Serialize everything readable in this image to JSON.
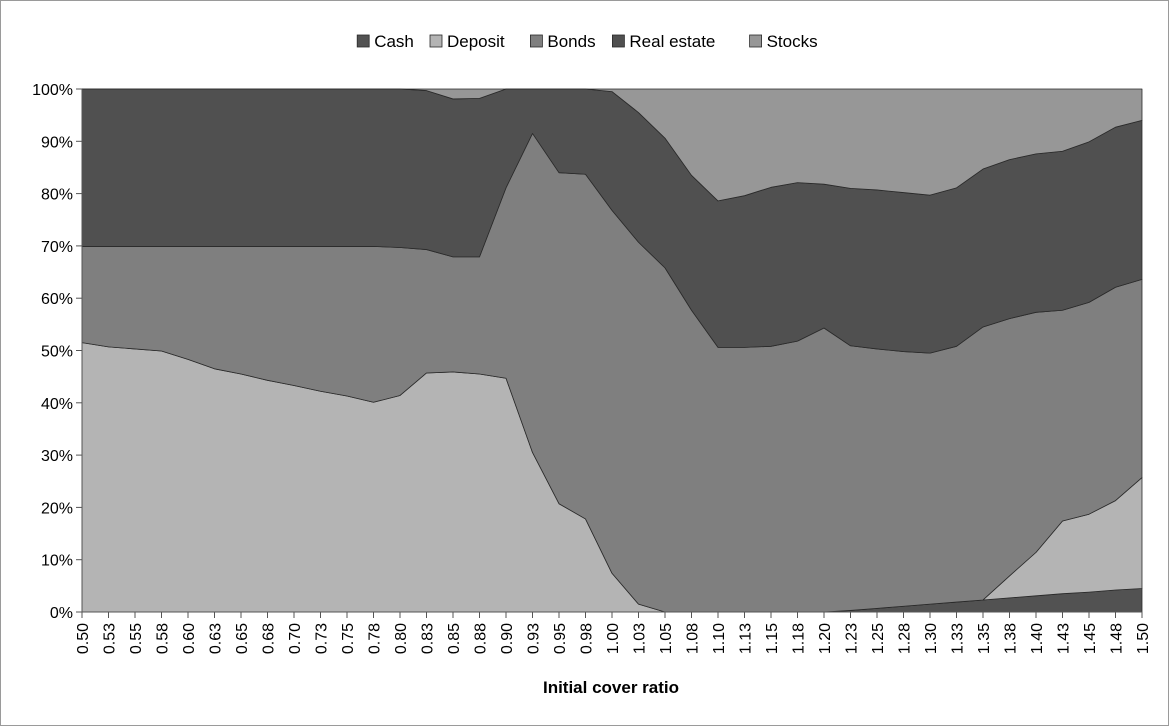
{
  "chart_data": {
    "type": "area",
    "stacked": "percent",
    "xlabel": "Initial cover ratio",
    "ylabel": "",
    "ylim": [
      0,
      100
    ],
    "yticks": [
      "0%",
      "10%",
      "20%",
      "30%",
      "40%",
      "50%",
      "60%",
      "70%",
      "80%",
      "90%",
      "100%"
    ],
    "legend_position": "top",
    "grid": false,
    "categories": [
      "0.50",
      "0.53",
      "0.55",
      "0.58",
      "0.60",
      "0.63",
      "0.65",
      "0.68",
      "0.70",
      "0.73",
      "0.75",
      "0.78",
      "0.80",
      "0.83",
      "0.85",
      "0.88",
      "0.90",
      "0.93",
      "0.95",
      "0.98",
      "1.00",
      "1.03",
      "1.05",
      "1.08",
      "1.10",
      "1.13",
      "1.15",
      "1.18",
      "1.20",
      "1.23",
      "1.25",
      "1.28",
      "1.30",
      "1.33",
      "1.35",
      "1.38",
      "1.40",
      "1.43",
      "1.45",
      "1.48",
      "1.50"
    ],
    "series": [
      {
        "name": "Cash",
        "color": "#525252",
        "values": [
          0,
          0,
          0,
          0,
          0,
          0,
          0,
          0,
          0,
          0,
          0,
          0,
          0,
          0,
          0,
          0,
          0,
          0,
          0,
          0,
          0,
          0,
          0,
          0,
          0,
          0,
          0,
          0,
          0,
          0.3,
          0.7,
          1.1,
          1.5,
          1.9,
          2.3,
          2.7,
          3.1,
          3.5,
          3.8,
          4.2,
          4.5
        ]
      },
      {
        "name": "Deposit",
        "color": "#b4b4b4",
        "values": [
          51.5,
          50.7,
          50.3,
          49.9,
          48.3,
          46.5,
          45.5,
          44.3,
          43.3,
          42.2,
          41.3,
          40.1,
          41.4,
          45.7,
          45.9,
          45.5,
          44.7,
          30.5,
          20.7,
          17.8,
          7.4,
          1.5,
          0,
          0,
          0,
          0,
          0,
          0,
          0,
          0,
          0,
          0,
          0,
          0,
          0,
          4.2,
          8.3,
          13.9,
          14.9,
          17.1,
          21.2
        ]
      },
      {
        "name": "Bonds",
        "color": "#7f7f7f",
        "values": [
          18.4,
          19.2,
          19.6,
          20.0,
          21.6,
          23.4,
          24.4,
          25.6,
          26.6,
          27.7,
          28.6,
          29.8,
          28.3,
          23.6,
          22.0,
          22.4,
          36.4,
          61.0,
          63.3,
          65.9,
          69.4,
          69.2,
          65.8,
          57.7,
          50.6,
          50.6,
          50.8,
          51.8,
          54.3,
          50.6,
          49.6,
          48.7,
          48.0,
          48.9,
          52.2,
          49.2,
          45.9,
          40.3,
          40.5,
          40.8,
          37.9
        ]
      },
      {
        "name": "Real estate",
        "color": "#505050",
        "values": [
          30.1,
          30.1,
          30.1,
          30.1,
          30.1,
          30.1,
          30.1,
          30.1,
          30.1,
          30.1,
          30.1,
          30.1,
          30.3,
          30.4,
          30.2,
          30.3,
          18.9,
          8.5,
          16.0,
          16.3,
          22.7,
          24.8,
          24.8,
          25.8,
          28.0,
          29.0,
          30.4,
          30.3,
          27.5,
          30.1,
          30.4,
          30.4,
          30.2,
          30.3,
          30.2,
          30.4,
          30.3,
          30.4,
          30.7,
          30.6,
          30.4
        ]
      },
      {
        "name": "Stocks",
        "color": "#979797",
        "values": [
          0,
          0,
          0,
          0,
          0,
          0,
          0,
          0,
          0,
          0,
          0,
          0,
          0,
          0.3,
          1.9,
          1.8,
          0,
          0,
          0,
          0,
          0.5,
          4.5,
          9.4,
          16.5,
          21.4,
          20.4,
          18.8,
          17.9,
          18.2,
          19.0,
          19.3,
          19.8,
          20.3,
          18.9,
          15.3,
          13.5,
          12.4,
          11.9,
          10.1,
          7.3,
          6.0
        ]
      }
    ]
  }
}
